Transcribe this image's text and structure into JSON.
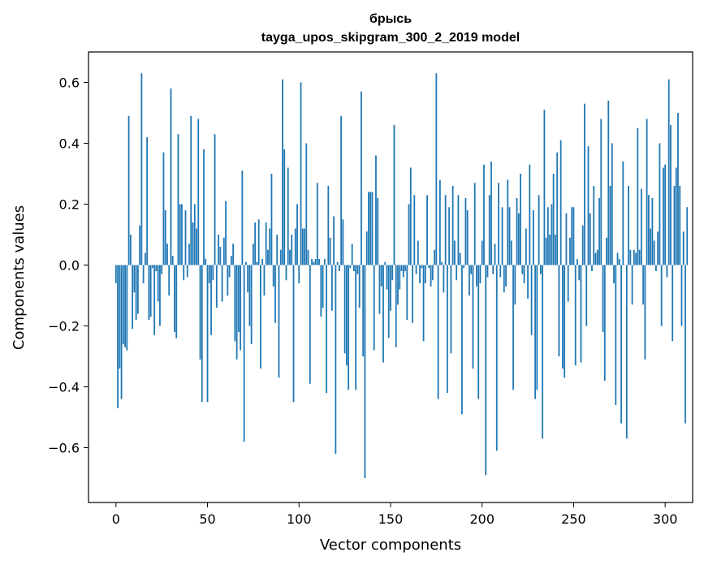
{
  "chart_data": {
    "type": "bar",
    "title_line1": "брысь",
    "title_line2": "tayga_upos_skipgram_300_2_2019 model",
    "xlabel": "Vector components",
    "ylabel": "Components values",
    "xlim": [
      -15,
      315
    ],
    "ylim": [
      -0.78,
      0.7
    ],
    "xticks": [
      0,
      50,
      100,
      150,
      200,
      250,
      300
    ],
    "xtick_labels": [
      "0",
      "50",
      "100",
      "150",
      "200",
      "250",
      "300"
    ],
    "yticks": [
      -0.6,
      -0.4,
      -0.2,
      0.0,
      0.2,
      0.4,
      0.6
    ],
    "ytick_labels": [
      "−0.6",
      "−0.4",
      "−0.2",
      "0.0",
      "0.2",
      "0.4",
      "0.6"
    ],
    "bar_color": "#1f77b4",
    "values": [
      -0.06,
      -0.47,
      -0.34,
      -0.44,
      -0.26,
      -0.27,
      -0.28,
      0.49,
      0.1,
      -0.21,
      -0.09,
      -0.18,
      -0.16,
      0.13,
      0.63,
      -0.06,
      0.04,
      0.42,
      -0.18,
      -0.17,
      -0.01,
      -0.23,
      -0.02,
      -0.12,
      -0.2,
      -0.03,
      0.37,
      0.18,
      0.07,
      -0.1,
      0.58,
      0.03,
      -0.22,
      -0.24,
      0.43,
      0.2,
      0.2,
      -0.05,
      0.18,
      -0.04,
      0.07,
      0.49,
      0.14,
      0.2,
      0.12,
      0.48,
      -0.31,
      -0.45,
      0.38,
      0.02,
      -0.45,
      -0.06,
      -0.23,
      -0.05,
      0.43,
      -0.14,
      0.1,
      0.06,
      -0.12,
      0.09,
      0.21,
      -0.1,
      -0.04,
      0.03,
      0.07,
      -0.25,
      -0.31,
      -0.22,
      -0.28,
      0.31,
      -0.58,
      0.01,
      -0.09,
      -0.2,
      -0.26,
      0.07,
      0.14,
      0.01,
      0.15,
      -0.34,
      0.02,
      -0.1,
      0.14,
      0.05,
      0.12,
      0.3,
      -0.07,
      -0.19,
      0.1,
      -0.37,
      0.05,
      0.61,
      0.38,
      -0.05,
      0.32,
      0.05,
      0.1,
      -0.45,
      0.12,
      0.2,
      -0.06,
      0.6,
      0.12,
      0.12,
      0.4,
      0.05,
      -0.39,
      0.02,
      0.01,
      0.02,
      0.27,
      0.02,
      -0.17,
      -0.14,
      0.02,
      -0.42,
      0.26,
      0.09,
      -0.15,
      0.16,
      -0.62,
      0.01,
      -0.02,
      0.49,
      0.15,
      -0.29,
      -0.33,
      -0.41,
      -0.01,
      0.07,
      -0.02,
      -0.41,
      -0.03,
      -0.14,
      0.57,
      -0.3,
      -0.7,
      0.11,
      0.24,
      0.24,
      0.24,
      -0.28,
      0.36,
      0.22,
      -0.16,
      -0.07,
      -0.32,
      0.01,
      -0.08,
      -0.24,
      -0.15,
      -0.05,
      0.46,
      -0.27,
      -0.13,
      -0.08,
      -0.02,
      -0.04,
      -0.02,
      -0.18,
      0.2,
      0.32,
      -0.19,
      0.23,
      -0.03,
      0.08,
      -0.06,
      -0.01,
      -0.25,
      -0.06,
      0.23,
      -0.01,
      -0.07,
      -0.05,
      0.05,
      0.63,
      -0.44,
      0.28,
      0.01,
      -0.09,
      0.23,
      -0.42,
      0.19,
      -0.29,
      0.26,
      0.08,
      -0.05,
      0.23,
      0.04,
      -0.49,
      -0.01,
      0.22,
      0.18,
      -0.1,
      -0.03,
      -0.34,
      0.27,
      -0.07,
      -0.44,
      -0.06,
      0.08,
      0.33,
      -0.69,
      -0.04,
      0.23,
      0.34,
      -0.03,
      0.07,
      -0.61,
      0.27,
      -0.04,
      0.19,
      -0.09,
      -0.07,
      0.28,
      0.19,
      0.08,
      -0.41,
      -0.13,
      0.22,
      0.17,
      0.3,
      -0.03,
      -0.06,
      0.12,
      -0.11,
      0.33,
      -0.23,
      0.18,
      -0.44,
      -0.41,
      0.23,
      -0.03,
      -0.57,
      0.51,
      0.09,
      0.19,
      0.1,
      0.2,
      0.3,
      0.1,
      0.37,
      -0.3,
      0.41,
      -0.34,
      -0.37,
      0.17,
      -0.12,
      0.09,
      0.19,
      0.19,
      -0.33,
      0.02,
      -0.05,
      -0.32,
      0.13,
      0.53,
      -0.2,
      0.39,
      0.17,
      -0.02,
      0.26,
      0.04,
      0.05,
      0.22,
      0.48,
      -0.22,
      -0.38,
      0.09,
      0.54,
      0.26,
      0.4,
      -0.06,
      -0.46,
      0.04,
      0.02,
      -0.52,
      0.34,
      0.0,
      -0.57,
      0.26,
      0.05,
      -0.13,
      0.05,
      0.04,
      0.45,
      0.05,
      0.25,
      -0.13,
      -0.31,
      0.48,
      0.23,
      0.12,
      0.22,
      0.08,
      -0.02,
      0.11,
      0.4,
      -0.2,
      0.32,
      0.33,
      -0.04,
      0.61,
      0.46,
      -0.25,
      0.26,
      0.32,
      0.5,
      0.26,
      -0.2,
      0.11,
      -0.52,
      0.19
    ]
  }
}
